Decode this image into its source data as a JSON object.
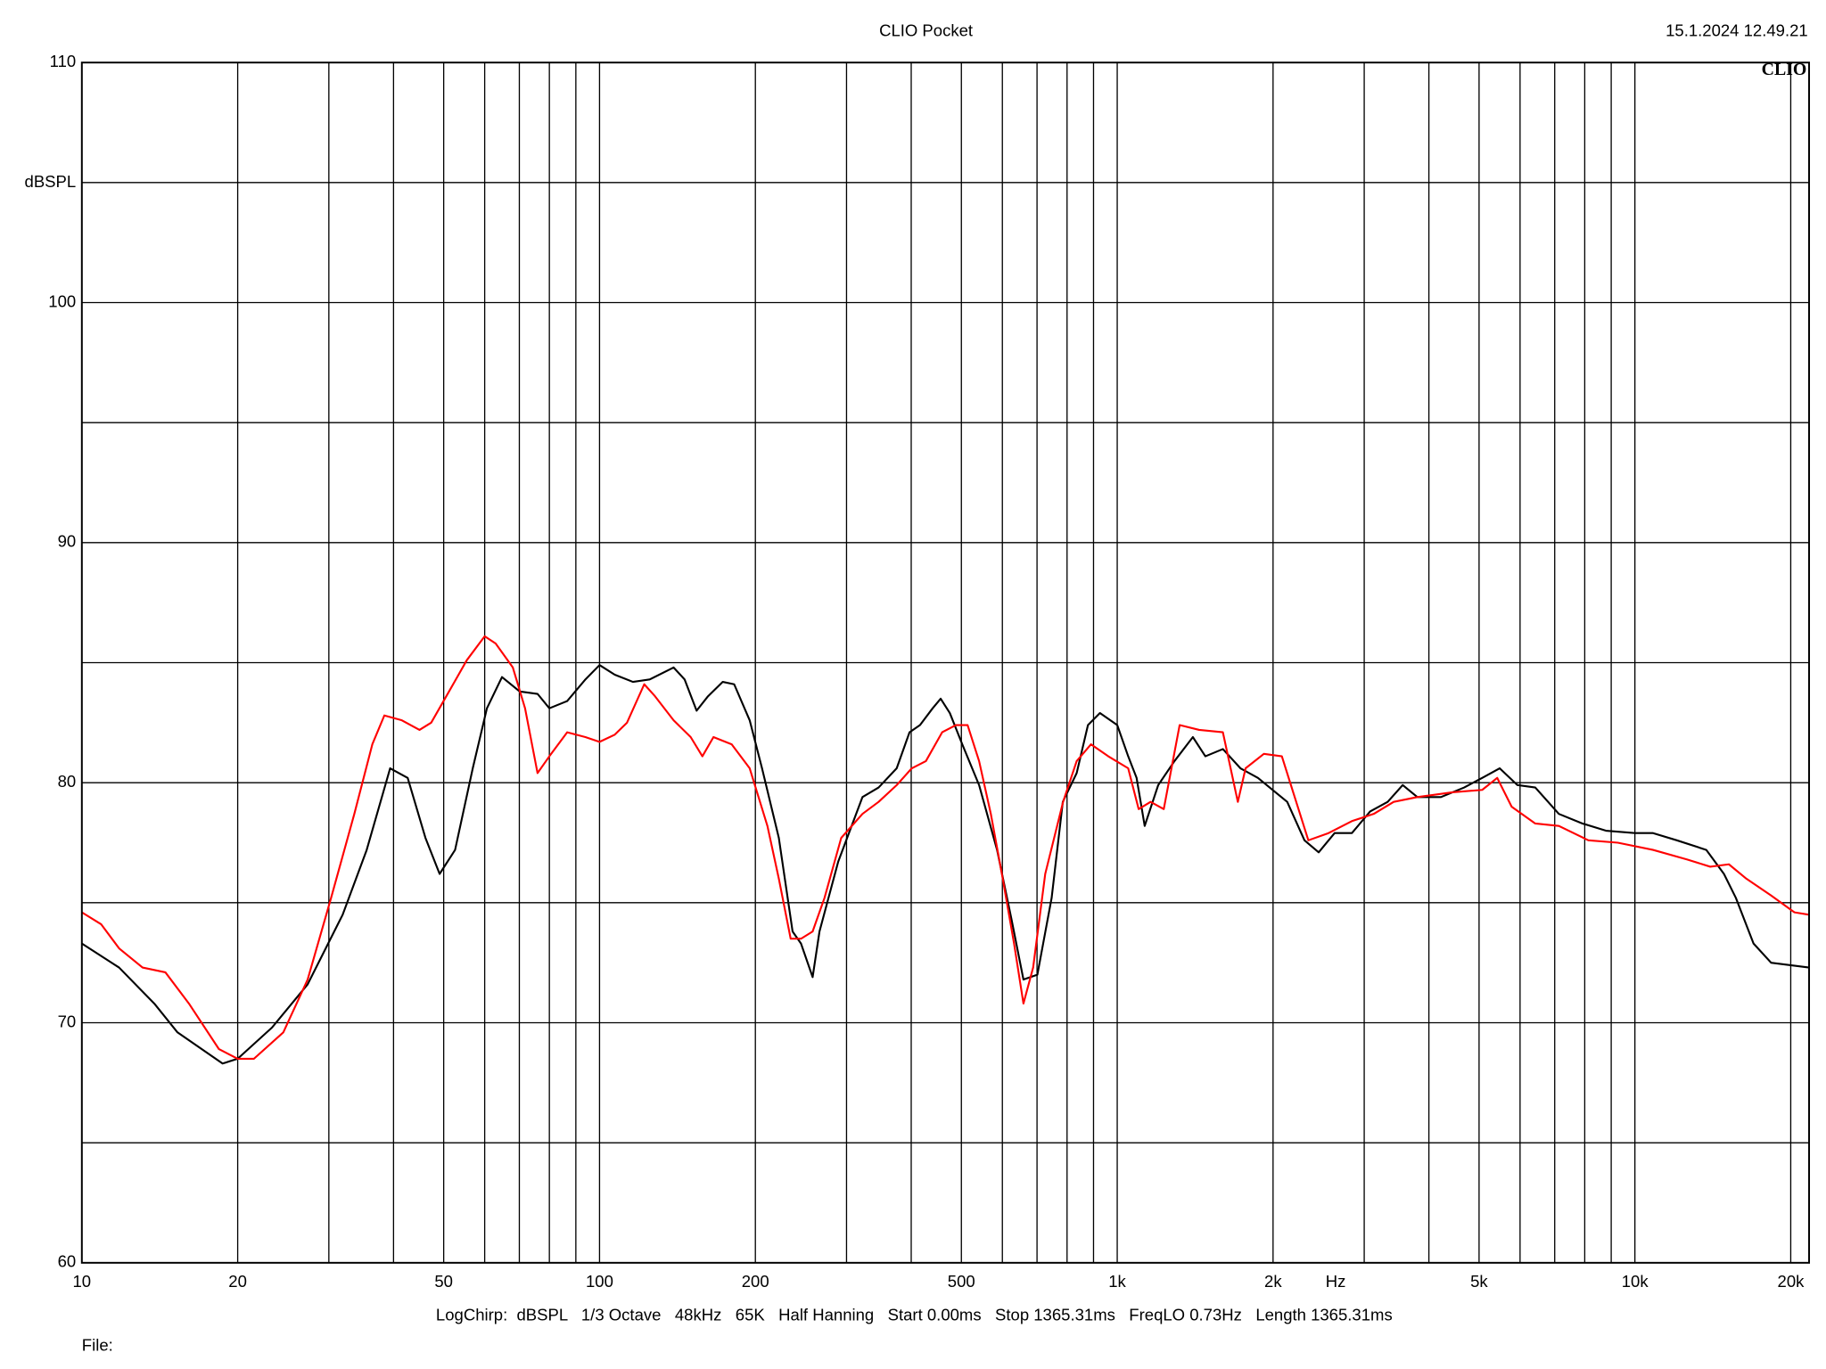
{
  "chart_data": {
    "type": "line",
    "title": "CLIO Pocket",
    "timestamp": "15.1.2024 12.49.21",
    "brand": "CLIO",
    "y_label": "dBSPL",
    "x_label": "Hz",
    "settings": "LogChirp:  dBSPL   1/3 Octave   48kHz   65K   Half Hanning   Start 0.00ms   Stop 1365.31ms   FreqLO 0.73Hz   Length 1365.31ms",
    "file_label": "File:",
    "x_scale": "log",
    "grid": true,
    "xlim": [
      10,
      21700
    ],
    "ylim": [
      60,
      110
    ],
    "xticks": [
      10,
      20,
      50,
      100,
      200,
      500,
      {
        "value": 1000,
        "label": "1k"
      },
      {
        "value": 2000,
        "label": "2k"
      },
      {
        "value": 5000,
        "label": "5k"
      },
      {
        "value": 10000,
        "label": "10k"
      },
      {
        "value": 20000,
        "label": "20k"
      }
    ],
    "xminor": [
      30,
      40,
      60,
      70,
      80,
      90,
      300,
      400,
      600,
      700,
      800,
      900,
      3000,
      4000,
      6000,
      7000,
      8000,
      9000
    ],
    "yticks": [
      60,
      70,
      80,
      90,
      100,
      110
    ],
    "yminor": [
      65,
      75,
      85,
      95,
      105
    ],
    "series": [
      {
        "name": "black",
        "color": "#000000",
        "x": [
          10,
          11.8,
          13.8,
          15.3,
          18.7,
          20,
          23.3,
          27.3,
          31.9,
          35.5,
          39.4,
          42.6,
          46.1,
          49.1,
          52.6,
          56.9,
          60.6,
          64.8,
          70.1,
          75.9,
          80,
          86.6,
          93.9,
          100,
          107,
          116,
          125,
          139,
          146,
          154,
          162,
          173,
          182,
          195,
          206,
          222,
          236,
          245,
          258,
          266,
          289,
          322,
          346,
          375,
          397,
          416,
          440,
          456,
          475,
          502,
          541,
          586,
          625,
          659,
          701,
          747,
          785,
          835,
          878,
          926,
          1000,
          1050,
          1090,
          1130,
          1200,
          1290,
          1400,
          1480,
          1600,
          1730,
          1870,
          1970,
          2130,
          2300,
          2450,
          2630,
          2840,
          3080,
          3330,
          3560,
          3800,
          4220,
          4680,
          5070,
          5480,
          5930,
          6420,
          7130,
          7920,
          8790,
          10000,
          10840,
          12050,
          13740,
          14860,
          15670,
          16950,
          18330,
          21700
        ],
        "values": [
          73.3,
          72.3,
          70.8,
          69.6,
          68.3,
          68.5,
          69.8,
          71.6,
          74.5,
          77.2,
          80.6,
          80.2,
          77.7,
          76.2,
          77.2,
          80.6,
          83.1,
          84.4,
          83.8,
          83.7,
          83.1,
          83.4,
          84.3,
          84.9,
          84.5,
          84.2,
          84.3,
          84.8,
          84.3,
          83.0,
          83.6,
          84.2,
          84.1,
          82.6,
          80.6,
          77.7,
          73.8,
          73.3,
          71.9,
          73.8,
          76.7,
          79.4,
          79.8,
          80.6,
          82.1,
          82.4,
          83.1,
          83.5,
          82.9,
          81.6,
          79.9,
          77.2,
          74.3,
          71.8,
          72.0,
          75.2,
          79.2,
          80.4,
          82.4,
          82.9,
          82.4,
          81.1,
          80.2,
          78.2,
          79.9,
          80.9,
          81.9,
          81.1,
          81.4,
          80.6,
          80.2,
          79.8,
          79.2,
          77.6,
          77.1,
          77.9,
          77.9,
          78.8,
          79.2,
          79.9,
          79.4,
          79.4,
          79.8,
          80.2,
          80.6,
          79.9,
          79.8,
          78.7,
          78.3,
          78.0,
          77.9,
          77.9,
          77.6,
          77.2,
          76.2,
          75.2,
          73.3,
          72.5,
          72.3
        ]
      },
      {
        "name": "red",
        "color": "#ff0000",
        "x": [
          10,
          10.9,
          11.8,
          13.1,
          14.5,
          16.1,
          18.4,
          20,
          21.5,
          24.5,
          27.3,
          30.3,
          33.6,
          36.4,
          38.4,
          41.5,
          44.9,
          47.3,
          51.2,
          55.4,
          60,
          63,
          68,
          71.8,
          75.9,
          80,
          86.6,
          93.9,
          100,
          107,
          113,
          122,
          128,
          139,
          150,
          158,
          166,
          180,
          195,
          211,
          222,
          234,
          245,
          258,
          272,
          293,
          322,
          346,
          375,
          401,
          427,
          459,
          488,
          514,
          541,
          570,
          601,
          632,
          659,
          688,
          726,
          786,
          835,
          890,
          961,
          1050,
          1100,
          1160,
          1230,
          1320,
          1440,
          1600,
          1710,
          1770,
          1920,
          2080,
          2180,
          2340,
          2560,
          2840,
          3130,
          3420,
          3800,
          4440,
          5070,
          5420,
          5780,
          6420,
          7130,
          8130,
          9270,
          10840,
          12620,
          13980,
          15190,
          16420,
          18330,
          20330,
          21700
        ],
        "values": [
          74.6,
          74.1,
          73.1,
          72.3,
          72.1,
          70.8,
          68.9,
          68.5,
          68.5,
          69.6,
          71.8,
          75.2,
          78.7,
          81.6,
          82.8,
          82.6,
          82.2,
          82.5,
          83.8,
          85.1,
          86.1,
          85.8,
          84.8,
          83.1,
          80.4,
          81.1,
          82.1,
          81.9,
          81.7,
          82.0,
          82.5,
          84.1,
          83.6,
          82.6,
          81.9,
          81.1,
          81.9,
          81.6,
          80.6,
          78.2,
          76.0,
          73.5,
          73.5,
          73.8,
          75.2,
          77.7,
          78.7,
          79.2,
          79.9,
          80.6,
          80.9,
          82.1,
          82.4,
          82.4,
          80.9,
          78.7,
          76.0,
          73.3,
          70.8,
          72.3,
          76.2,
          79.2,
          80.9,
          81.6,
          81.1,
          80.6,
          78.9,
          79.2,
          78.9,
          82.4,
          82.2,
          82.1,
          79.2,
          80.6,
          81.2,
          81.1,
          79.7,
          77.6,
          77.9,
          78.4,
          78.7,
          79.2,
          79.4,
          79.6,
          79.7,
          80.2,
          79.0,
          78.3,
          78.2,
          77.6,
          77.5,
          77.2,
          76.8,
          76.5,
          76.6,
          76.0,
          75.3,
          74.6,
          74.5
        ]
      }
    ]
  }
}
